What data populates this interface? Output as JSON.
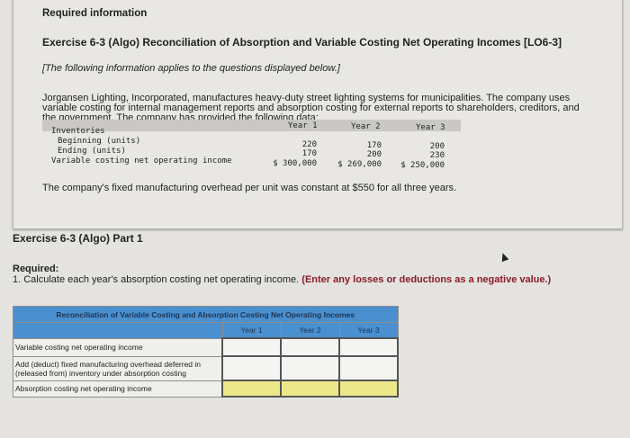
{
  "info": {
    "required_label": "Required information",
    "title": "Exercise 6-3 (Algo) Reconciliation of Absorption and Variable Costing Net Operating Incomes [LO6-3]",
    "note": "[The following information applies to the questions displayed below.]",
    "paragraph": "Jorgansen Lighting, Incorporated, manufactures heavy-duty street lighting systems for municipalities. The company uses variable costing for internal management reports and absorption costing for external reports to shareholders, creditors, and the government. The company has provided the following data:",
    "data_table": {
      "columns": [
        "Year 1",
        "Year 2",
        "Year 3"
      ],
      "section": "Inventories",
      "rows": [
        {
          "label": "Beginning (units)",
          "values": [
            "220",
            "170",
            "200"
          ]
        },
        {
          "label": "Ending (units)",
          "values": [
            "170",
            "200",
            "230"
          ]
        },
        {
          "label": "Variable costing net operating income",
          "values": [
            "$ 300,000",
            "$ 269,000",
            "$ 250,000"
          ]
        }
      ]
    },
    "fixed_note": "The company's fixed manufacturing overhead per unit was constant at $550 for all three years."
  },
  "part": {
    "heading": "Exercise 6-3 (Algo) Part 1",
    "required_label": "Required:",
    "instruction": "1. Calculate each year's absorption costing net operating income.",
    "instruction_emphasis": "(Enter any losses or deductions as a negative value.)"
  },
  "reconciliation": {
    "title": "Reconciliation of Variable Costing and Absorption Costing Net Operating Incomes",
    "columns": [
      "Year 1",
      "Year 2",
      "Year 3"
    ],
    "rows": [
      {
        "label": "Variable costing net operating income",
        "values": [
          "",
          "",
          ""
        ]
      },
      {
        "label": "Add (deduct) fixed manufacturing overhead deferred in (released from) inventory under absorption costing",
        "values": [
          "",
          "",
          ""
        ]
      },
      {
        "label": "Absorption costing net operating income",
        "values": [
          "",
          "",
          ""
        ]
      }
    ]
  },
  "colors": {
    "header_blue": "#4a90d0",
    "total_yellow": "#ece88a",
    "emphasis_red": "#8b1b2a"
  }
}
